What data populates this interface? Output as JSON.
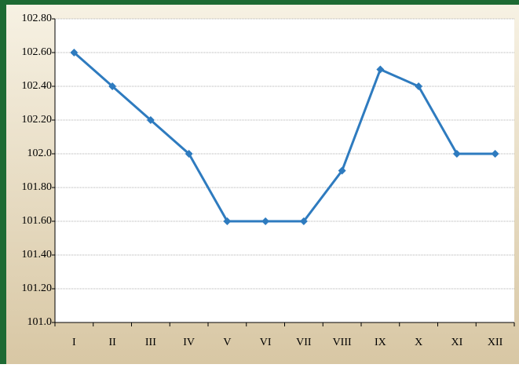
{
  "chart_data": {
    "type": "line",
    "categories": [
      "I",
      "II",
      "III",
      "IV",
      "V",
      "VI",
      "VII",
      "VIII",
      "IX",
      "X",
      "XI",
      "XII"
    ],
    "series": [
      {
        "color": "#2e7bbf",
        "values": [
          102.6,
          102.4,
          102.2,
          102.0,
          101.6,
          101.6,
          101.6,
          101.9,
          102.5,
          102.4,
          102.0,
          102.0
        ]
      }
    ],
    "ylim": [
      101.0,
      102.8
    ],
    "yticks": [
      {
        "value": 101.0,
        "label": "101.0"
      },
      {
        "value": 101.2,
        "label": "101.20"
      },
      {
        "value": 101.4,
        "label": "101.40"
      },
      {
        "value": 101.6,
        "label": "101.60"
      },
      {
        "value": 101.8,
        "label": "101.80"
      },
      {
        "value": 102.0,
        "label": "102.0"
      },
      {
        "value": 102.2,
        "label": "102.20"
      },
      {
        "value": 102.4,
        "label": "102.40"
      },
      {
        "value": 102.6,
        "label": "102.60"
      },
      {
        "value": 102.8,
        "label": "102.80"
      }
    ],
    "grid": true
  }
}
